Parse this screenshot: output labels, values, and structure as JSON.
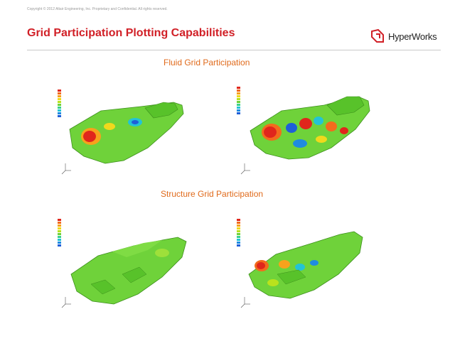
{
  "header": {
    "copyright": "Copyright © 2012 Altair Engineering, Inc. Proprietary and Confidential. All rights reserved.",
    "title": "Grid Participation Plotting Capabilities",
    "logo_text": "HyperWorks",
    "logo_icon": "hyperworks-logo-icon"
  },
  "sections": {
    "fluid": {
      "title": "Fluid Grid Participation"
    },
    "structure": {
      "title": "Structure Grid Participation"
    }
  },
  "colors": {
    "title_red": "#d12027",
    "section_orange": "#e06a1b",
    "contour_green": "#6fd23a",
    "contour_red": "#e0261c",
    "contour_blue": "#1f5fd8"
  }
}
